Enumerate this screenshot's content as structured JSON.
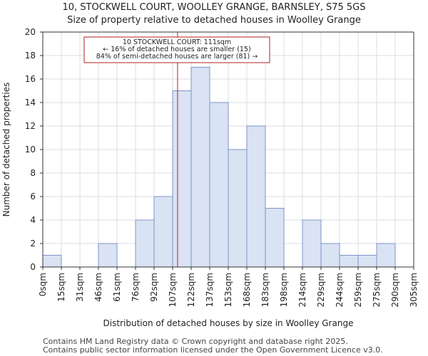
{
  "chart_data": {
    "type": "bar",
    "title": "10, STOCKWELL COURT, WOOLLEY GRANGE, BARNSLEY, S75 5GS",
    "subtitle": "Size of property relative to detached houses in Woolley Grange",
    "xlabel": "Distribution of detached houses by size in Woolley Grange",
    "ylabel": "Number of detached properties",
    "x_tick_labels": [
      "0sqm",
      "15sqm",
      "31sqm",
      "46sqm",
      "61sqm",
      "76sqm",
      "92sqm",
      "107sqm",
      "122sqm",
      "137sqm",
      "153sqm",
      "168sqm",
      "183sqm",
      "198sqm",
      "214sqm",
      "229sqm",
      "244sqm",
      "259sqm",
      "275sqm",
      "290sqm",
      "305sqm"
    ],
    "values": [
      1,
      0,
      0,
      2,
      0,
      4,
      6,
      15,
      17,
      14,
      10,
      12,
      5,
      0,
      4,
      2,
      1,
      1,
      2,
      0
    ],
    "y_ticks": [
      0,
      2,
      4,
      6,
      8,
      10,
      12,
      14,
      16,
      18,
      20
    ],
    "ylim": [
      0,
      20
    ],
    "property_marker_sqm": 111,
    "annotation": [
      "10 STOCKWELL COURT: 111sqm",
      "← 16% of detached houses are smaller (15)",
      "84% of semi-detached houses are larger (81) →"
    ],
    "colors": {
      "bar_fill": "#dae3f3",
      "bar_stroke": "#7f93c9",
      "marker_line": "#b22222",
      "annotation_border": "#b22222"
    },
    "grid": true
  },
  "footer": {
    "line1": "Contains HM Land Registry data © Crown copyright and database right 2025.",
    "line2": "Contains public sector information licensed under the Open Government Licence v3.0."
  }
}
